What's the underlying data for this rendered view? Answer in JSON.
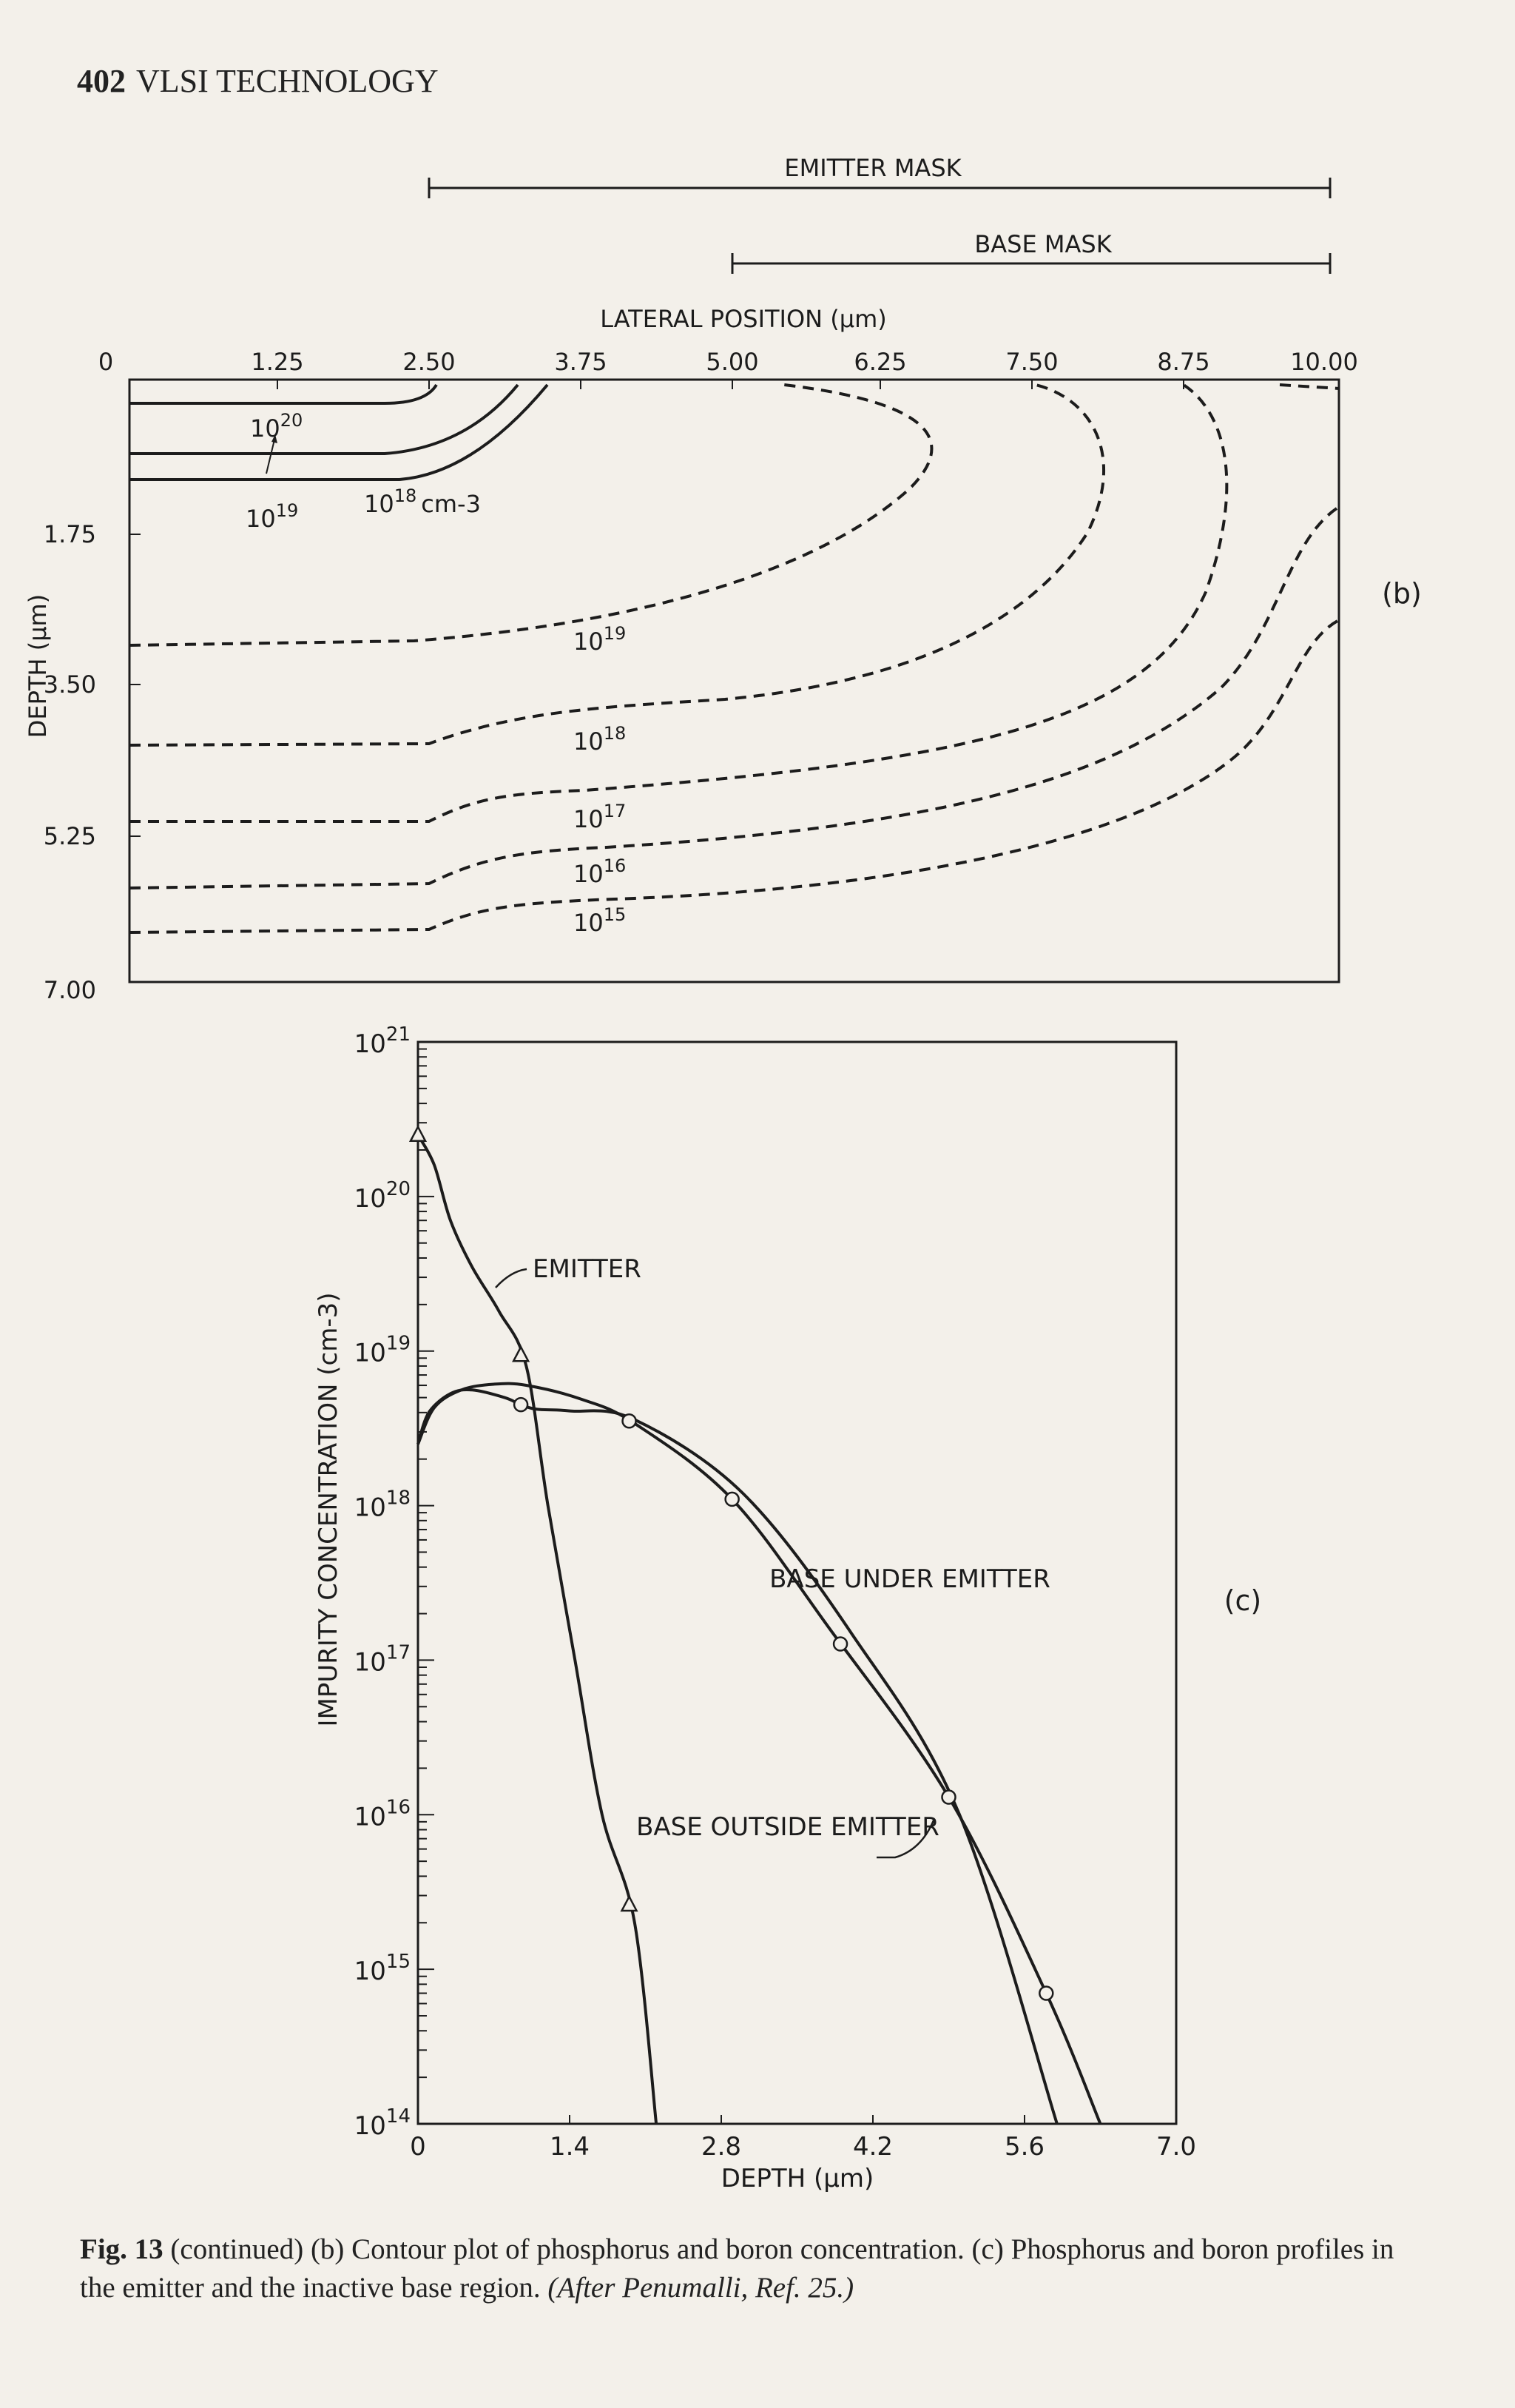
{
  "page": {
    "number": "402",
    "running_title": "VLSI TECHNOLOGY"
  },
  "figure_b": {
    "emitter_mask_label": "EMITTER MASK",
    "base_mask_label": "BASE MASK",
    "x_title": "LATERAL POSITION (μm)",
    "y_title": "DEPTH (μm)",
    "x_ticks": [
      "0",
      "1.25",
      "2.50",
      "3.75",
      "5.00",
      "6.25",
      "7.50",
      "8.75",
      "10.00"
    ],
    "y_ticks": [
      "1.75",
      "3.50",
      "5.25",
      "7.00"
    ],
    "panel_label": "(b)",
    "emitter_contours": [
      {
        "base": "10",
        "exp": "20"
      },
      {
        "base": "10",
        "exp": "19"
      },
      {
        "base": "10",
        "exp": "18",
        "unit": "cm-3"
      }
    ],
    "base_contours": [
      {
        "base": "10",
        "exp": "19"
      },
      {
        "base": "10",
        "exp": "18"
      },
      {
        "base": "10",
        "exp": "17"
      },
      {
        "base": "10",
        "exp": "16"
      },
      {
        "base": "10",
        "exp": "15"
      }
    ]
  },
  "figure_c": {
    "panel_label": "(c)",
    "chart_data": {
      "type": "line",
      "xlabel": "DEPTH (μm)",
      "ylabel": "IMPURITY CONCENTRATION (cm-3)",
      "x_ticks": [
        "0",
        "1.4",
        "2.8",
        "4.2",
        "5.6",
        "7.0"
      ],
      "xlim": [
        0,
        7.0
      ],
      "ylim": [
        100000000000000.0,
        1e+21
      ],
      "y_scale": "log",
      "y_ticks": [
        {
          "base": "10",
          "exp": "21"
        },
        {
          "base": "10",
          "exp": "20"
        },
        {
          "base": "10",
          "exp": "19"
        },
        {
          "base": "10",
          "exp": "18"
        },
        {
          "base": "10",
          "exp": "17"
        },
        {
          "base": "10",
          "exp": "16"
        },
        {
          "base": "10",
          "exp": "15"
        },
        {
          "base": "10",
          "exp": "14"
        }
      ],
      "series": [
        {
          "name": "EMITTER",
          "marker": "triangle",
          "x": [
            0,
            0.15,
            0.3,
            0.5,
            0.75,
            1.0,
            1.2,
            1.45,
            1.7,
            2.0,
            2.2
          ],
          "y": [
            2.5e+20,
            1.6e+20,
            7e+19,
            3.5e+19,
            1.8e+19,
            8e+18,
            1e+18,
            1e+17,
            1e+16,
            2000000000000000.0,
            100000000000000.0
          ],
          "marker_x": [
            0,
            0.95,
            1.95
          ]
        },
        {
          "name": "BASE UNDER EMITTER",
          "marker": "circle",
          "x": [
            0,
            0.15,
            0.4,
            0.7,
            1.0,
            1.5,
            2.0,
            2.9,
            3.8,
            4.9,
            5.8,
            6.3
          ],
          "y": [
            2.5e+18,
            4.3e+18,
            5.6e+18,
            6.1e+18,
            6e+18,
            4.9e+18,
            3.4e+18,
            1.1e+18,
            1.6e+17,
            1.3e+16,
            700000000000000.0,
            100000000000000.0
          ],
          "marker_x": [
            1.95,
            2.9,
            3.9,
            4.9,
            5.8
          ]
        },
        {
          "name": "BASE OUTSIDE EMITTER",
          "marker": "circle",
          "x": [
            0,
            0.1,
            0.3,
            0.5,
            0.8,
            0.95,
            1.1,
            1.4,
            2.0,
            3.0,
            4.0,
            5.0,
            5.9
          ],
          "y": [
            2.5e+18,
            4e+18,
            5.3e+18,
            5.6e+18,
            5e+18,
            4.5e+18,
            4.2e+18,
            4.1e+18,
            3.6e+18,
            1.2e+18,
            1.5e+17,
            1e+16,
            100000000000000.0
          ],
          "marker_x": [
            0.95
          ]
        }
      ]
    }
  },
  "caption": {
    "label": "Fig. 13",
    "text": " (continued) (b) Contour plot of phosphorus and boron concentration. (c) Phosphorus and boron profiles in the emitter and the inactive base region. ",
    "attribution": "(After Penumalli, Ref. 25.)"
  }
}
